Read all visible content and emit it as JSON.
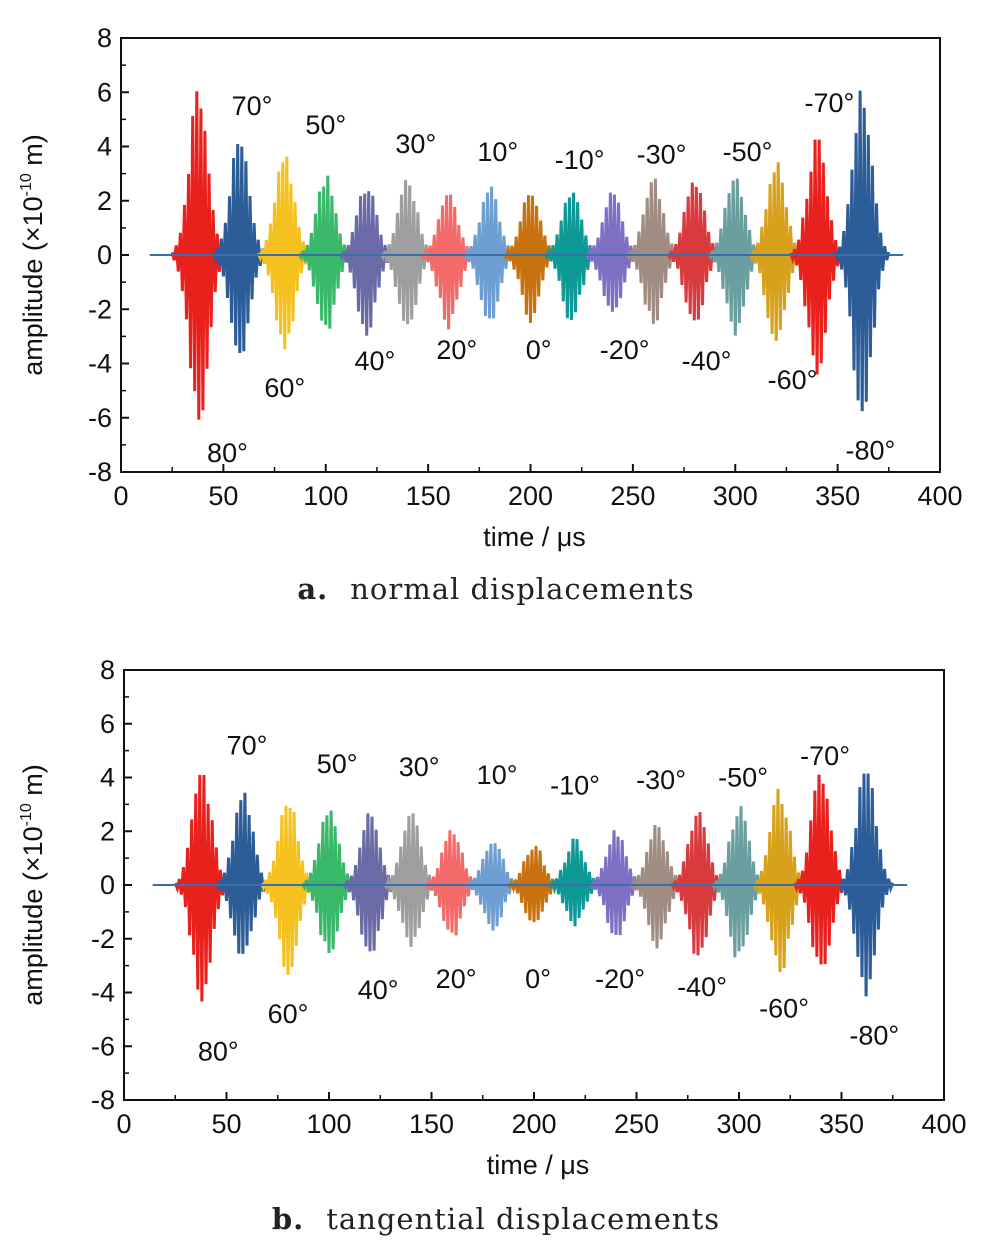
{
  "figure": {
    "panels": [
      {
        "caption_letter": "a.",
        "caption_text": "normal displacements"
      },
      {
        "caption_letter": "b.",
        "caption_text": "tangential displacements"
      }
    ]
  },
  "chart_data": [
    {
      "type": "line",
      "title": "",
      "xlabel": "time / μs",
      "ylabel_main": "amplitude (×10",
      "ylabel_exp": "-10",
      "ylabel_unit": " m)",
      "xlim": [
        0,
        400
      ],
      "ylim": [
        -8,
        8
      ],
      "xticks": [
        0,
        50,
        100,
        150,
        200,
        250,
        300,
        350,
        400
      ],
      "yticks": [
        -8,
        -6,
        -4,
        -2,
        0,
        2,
        4,
        6,
        8
      ],
      "grid": false,
      "series": [
        {
          "name": "80°",
          "center": 38,
          "peak": 6.4,
          "neg": -6.6,
          "color": "#e8211d",
          "label_x": 52,
          "label_y": -7.3
        },
        {
          "name": "70°",
          "center": 58,
          "peak": 4.5,
          "neg": -4.3,
          "color": "#2c5d99",
          "label_x": 64,
          "label_y": 5.5
        },
        {
          "name": "60°",
          "center": 80,
          "peak": 3.9,
          "neg": -3.7,
          "color": "#f5c11f",
          "label_x": 80,
          "label_y": -4.9
        },
        {
          "name": "50°",
          "center": 100,
          "peak": 3.0,
          "neg": -3.0,
          "color": "#39b86a",
          "label_x": 100,
          "label_y": 4.8
        },
        {
          "name": "40°",
          "center": 120,
          "peak": 2.8,
          "neg": -3.1,
          "color": "#6a6aa6",
          "label_x": 124,
          "label_y": -3.9
        },
        {
          "name": "30°",
          "center": 140,
          "peak": 2.9,
          "neg": -2.9,
          "color": "#9e9e9e",
          "label_x": 144,
          "label_y": 4.1
        },
        {
          "name": "20°",
          "center": 160,
          "peak": 2.4,
          "neg": -2.8,
          "color": "#f36a6a",
          "label_x": 164,
          "label_y": -3.5
        },
        {
          "name": "10°",
          "center": 180,
          "peak": 2.6,
          "neg": -2.6,
          "color": "#6e9fd2",
          "label_x": 184,
          "label_y": 3.8
        },
        {
          "name": "0°",
          "center": 200,
          "peak": 2.6,
          "neg": -2.5,
          "color": "#c7720f",
          "label_x": 204,
          "label_y": -3.5
        },
        {
          "name": "-10°",
          "center": 220,
          "peak": 2.6,
          "neg": -2.6,
          "color": "#0d9a96",
          "label_x": 224,
          "label_y": 3.5
        },
        {
          "name": "-20°",
          "center": 240,
          "peak": 2.4,
          "neg": -2.5,
          "color": "#7f6fc4",
          "label_x": 246,
          "label_y": -3.5
        },
        {
          "name": "-30°",
          "center": 260,
          "peak": 2.9,
          "neg": -2.7,
          "color": "#a08c80",
          "label_x": 264,
          "label_y": 3.7
        },
        {
          "name": "-40°",
          "center": 280,
          "peak": 3.0,
          "neg": -2.8,
          "color": "#d83a3e",
          "label_x": 286,
          "label_y": -3.9
        },
        {
          "name": "-50°",
          "center": 300,
          "peak": 3.2,
          "neg": -3.1,
          "color": "#6a9ea0",
          "label_x": 306,
          "label_y": 3.8
        },
        {
          "name": "-60°",
          "center": 320,
          "peak": 3.7,
          "neg": -3.6,
          "color": "#d7a11c",
          "label_x": 328,
          "label_y": -4.6
        },
        {
          "name": "-70°",
          "center": 340,
          "peak": 4.4,
          "neg": -4.5,
          "color": "#e8211d",
          "label_x": 346,
          "label_y": 5.6
        },
        {
          "name": "-80°",
          "center": 362,
          "peak": 6.5,
          "neg": -6.4,
          "color": "#2c5d99",
          "label_x": 366,
          "label_y": -7.2
        }
      ]
    },
    {
      "type": "line",
      "title": "",
      "xlabel": "time / μs",
      "ylabel_main": "amplitude (×10",
      "ylabel_exp": "-10",
      "ylabel_unit": " m)",
      "xlim": [
        0,
        400
      ],
      "ylim": [
        -8,
        8
      ],
      "xticks": [
        0,
        50,
        100,
        150,
        200,
        250,
        300,
        350,
        400
      ],
      "yticks": [
        -8,
        -6,
        -4,
        -2,
        0,
        2,
        4,
        6,
        8
      ],
      "grid": false,
      "series": [
        {
          "name": "80°",
          "center": 38,
          "peak": 4.5,
          "neg": -4.5,
          "color": "#e8211d",
          "label_x": 46,
          "label_y": -6.2
        },
        {
          "name": "70°",
          "center": 58,
          "peak": 3.6,
          "neg": -2.9,
          "color": "#2c5d99",
          "label_x": 60,
          "label_y": 5.2
        },
        {
          "name": "60°",
          "center": 80,
          "peak": 3.5,
          "neg": -3.4,
          "color": "#f5c11f",
          "label_x": 80,
          "label_y": -4.8
        },
        {
          "name": "50°",
          "center": 100,
          "peak": 3.2,
          "neg": -2.8,
          "color": "#39b86a",
          "label_x": 104,
          "label_y": 4.5
        },
        {
          "name": "40°",
          "center": 120,
          "peak": 2.8,
          "neg": -3.0,
          "color": "#6a6aa6",
          "label_x": 124,
          "label_y": -3.9
        },
        {
          "name": "30°",
          "center": 140,
          "peak": 2.8,
          "neg": -2.5,
          "color": "#9e9e9e",
          "label_x": 144,
          "label_y": 4.4
        },
        {
          "name": "20°",
          "center": 160,
          "peak": 2.3,
          "neg": -2.1,
          "color": "#f36a6a",
          "label_x": 162,
          "label_y": -3.5
        },
        {
          "name": "10°",
          "center": 180,
          "peak": 1.8,
          "neg": -1.8,
          "color": "#6e9fd2",
          "label_x": 182,
          "label_y": 4.1
        },
        {
          "name": "0°",
          "center": 200,
          "peak": 1.6,
          "neg": -1.6,
          "color": "#c7720f",
          "label_x": 202,
          "label_y": -3.5
        },
        {
          "name": "-10°",
          "center": 220,
          "peak": 1.8,
          "neg": -1.6,
          "color": "#0d9a96",
          "label_x": 220,
          "label_y": 3.7
        },
        {
          "name": "-20°",
          "center": 240,
          "peak": 2.2,
          "neg": -2.1,
          "color": "#7f6fc4",
          "label_x": 242,
          "label_y": -3.5
        },
        {
          "name": "-30°",
          "center": 260,
          "peak": 2.5,
          "neg": -2.4,
          "color": "#a08c80",
          "label_x": 262,
          "label_y": 3.9
        },
        {
          "name": "-40°",
          "center": 280,
          "peak": 3.0,
          "neg": -2.9,
          "color": "#d83a3e",
          "label_x": 282,
          "label_y": -3.8
        },
        {
          "name": "-50°",
          "center": 300,
          "peak": 3.1,
          "neg": -3.0,
          "color": "#6a9ea0",
          "label_x": 302,
          "label_y": 4.0
        },
        {
          "name": "-60°",
          "center": 320,
          "peak": 3.7,
          "neg": -3.5,
          "color": "#d7a11c",
          "label_x": 322,
          "label_y": -4.6
        },
        {
          "name": "-70°",
          "center": 340,
          "peak": 4.4,
          "neg": -3.5,
          "color": "#e8211d",
          "label_x": 342,
          "label_y": 4.8
        },
        {
          "name": "-80°",
          "center": 362,
          "peak": 4.6,
          "neg": -4.4,
          "color": "#2c5d99",
          "label_x": 366,
          "label_y": -5.6
        }
      ]
    }
  ]
}
